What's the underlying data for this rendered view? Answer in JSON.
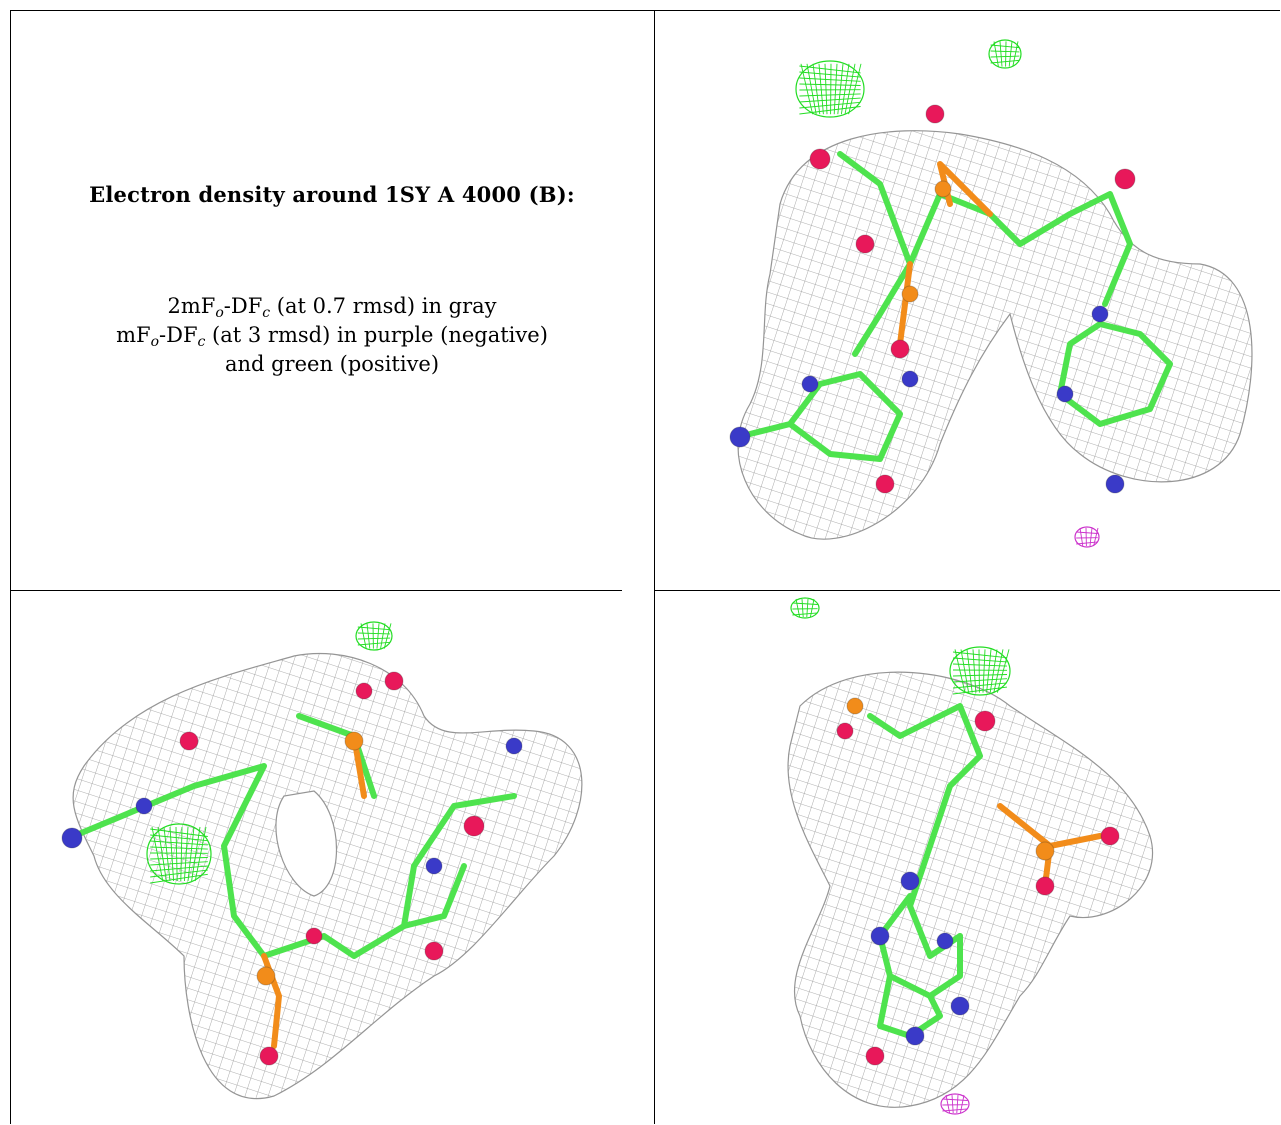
{
  "caption": {
    "title": "Electron density around 1SY A 4000 (B):",
    "line1": {
      "pre": "2mF",
      "sub1": "o",
      "mid": "-DF",
      "sub2": "c",
      "post": " (at 0.7 rmsd) in gray"
    },
    "line2": {
      "pre": "mF",
      "sub1": "o",
      "mid": "-DF",
      "sub2": "c",
      "post": " (at 3 rmsd) in purple (negative)"
    },
    "line3": "and green (positive)"
  },
  "colors": {
    "mesh_gray": "#8a8a8a",
    "carbon_green": "#4ee34e",
    "oxygen_red": "#e8185a",
    "nitrogen_blue": "#3a3ac8",
    "phosphorus_orange": "#f28c1a",
    "positive_green": "#22dd22",
    "negative_purple": "#cc33cc"
  },
  "panels": [
    {
      "name": "view-top-right"
    },
    {
      "name": "view-bottom-left"
    },
    {
      "name": "view-bottom-right"
    }
  ]
}
